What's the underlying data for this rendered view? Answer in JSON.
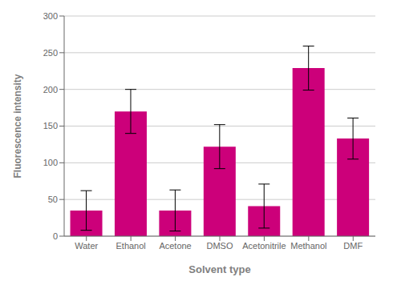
{
  "chart_data": {
    "type": "bar",
    "categories": [
      "Water",
      "Ethanol",
      "Acetone",
      "DMSO",
      "Acetonitrile",
      "Methanol",
      "DMF"
    ],
    "values": [
      35,
      170,
      35,
      122,
      41,
      229,
      133
    ],
    "errors": [
      27,
      30,
      28,
      30,
      30,
      30,
      28
    ],
    "color": "#CC007A",
    "xlabel": "Solvent type",
    "ylabel": "Fluorescence intensity",
    "ylim": [
      0,
      300
    ],
    "yticks": [
      0,
      50,
      100,
      150,
      200,
      250,
      300
    ],
    "grid": true
  }
}
